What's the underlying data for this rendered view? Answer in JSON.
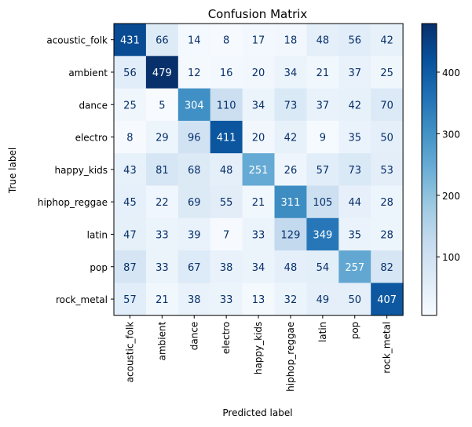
{
  "chart_data": {
    "type": "heatmap",
    "title": "Confusion Matrix",
    "xlabel": "Predicted label",
    "ylabel": "True label",
    "row_labels": [
      "acoustic_folk",
      "ambient",
      "dance",
      "electro",
      "happy_kids",
      "hiphop_reggae",
      "latin",
      "pop",
      "rock_metal"
    ],
    "col_labels": [
      "acoustic_folk",
      "ambient",
      "dance",
      "electro",
      "happy_kids",
      "hiphop_reggae",
      "latin",
      "pop",
      "rock_metal"
    ],
    "values": [
      [
        431,
        66,
        14,
        8,
        17,
        18,
        48,
        56,
        42
      ],
      [
        56,
        479,
        12,
        16,
        20,
        34,
        21,
        37,
        25
      ],
      [
        25,
        5,
        304,
        110,
        34,
        73,
        37,
        42,
        70
      ],
      [
        8,
        29,
        96,
        411,
        20,
        42,
        9,
        35,
        50
      ],
      [
        43,
        81,
        68,
        48,
        251,
        26,
        57,
        73,
        53
      ],
      [
        45,
        22,
        69,
        55,
        21,
        311,
        105,
        44,
        28
      ],
      [
        47,
        33,
        39,
        7,
        33,
        129,
        349,
        35,
        28
      ],
      [
        87,
        33,
        67,
        38,
        34,
        48,
        54,
        257,
        82
      ],
      [
        57,
        21,
        38,
        33,
        13,
        32,
        49,
        50,
        407
      ]
    ],
    "colormap": "Blues",
    "vmin": 5,
    "vmax": 479,
    "colorbar_ticks": [
      100,
      200,
      300,
      400
    ],
    "grid": false
  }
}
